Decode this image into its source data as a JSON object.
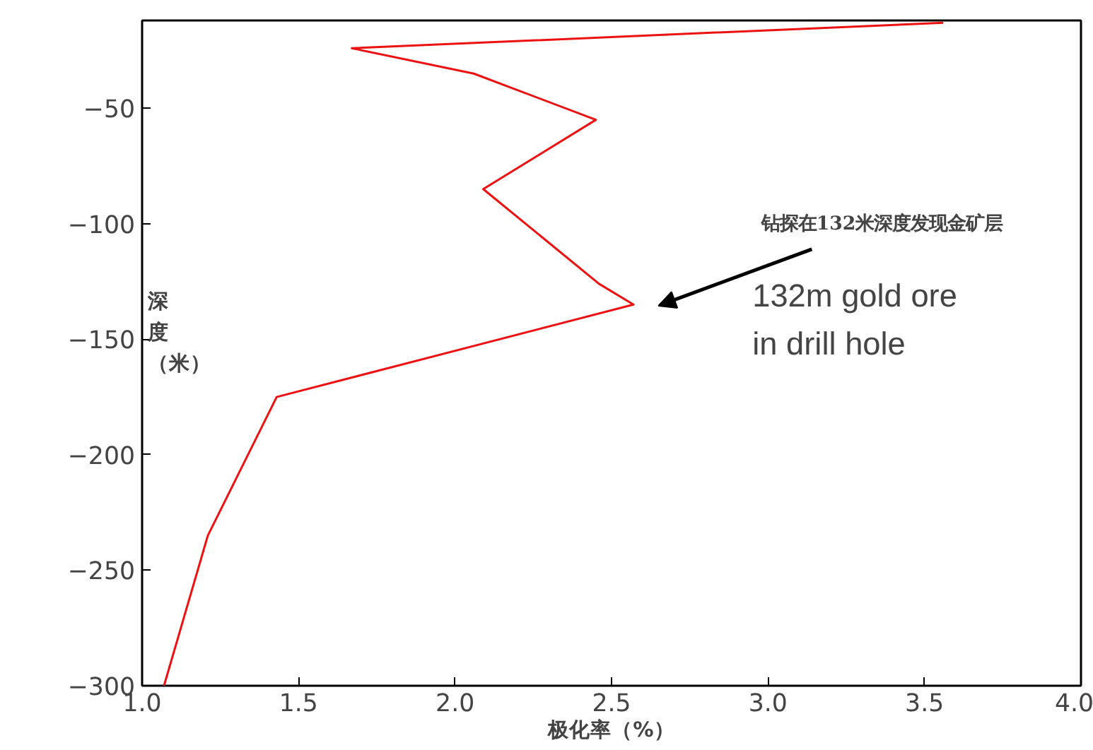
{
  "chart_data": {
    "type": "line",
    "xlabel": "极化率（%）",
    "ylabel": "深度（米）",
    "series": [
      {
        "color": "#ee1111",
        "x": [
          3.56,
          1.67,
          2.06,
          2.45,
          2.09,
          2.46,
          2.57,
          1.43,
          1.21,
          1.07
        ],
        "values": [
          -13,
          -24,
          -35,
          -55,
          -85,
          -126,
          -135,
          -175,
          -235,
          -300
        ]
      }
    ],
    "xlim": [
      1.0,
      4.0
    ],
    "ylim": [
      -300,
      -12
    ],
    "xticks": [
      {
        "value": 1.0,
        "label": "1.0"
      },
      1.5,
      {
        "value": 2.0,
        "label": "2.0"
      },
      2.5,
      {
        "value": 3.0,
        "label": "3.0"
      },
      3.5,
      {
        "value": 4.0,
        "label": "4.0"
      }
    ],
    "yticks": [
      {
        "value": -300,
        "label": "−300"
      },
      {
        "value": -250,
        "label": "−250"
      },
      {
        "value": -200,
        "label": "−200"
      },
      {
        "value": -150,
        "label": "−150"
      },
      {
        "value": -100,
        "label": "−100"
      },
      {
        "value": -50,
        "label": "−50"
      }
    ],
    "annotations": [
      "钻探在132米深度发现金矿层",
      "132m gold ore\n in drill hole"
    ],
    "grid": false,
    "marker": "none",
    "line_style": "solid"
  }
}
